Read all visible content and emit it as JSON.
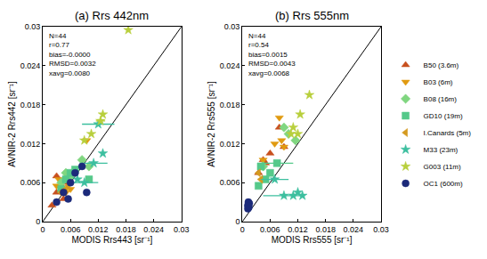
{
  "chart_data": [
    {
      "type": "scatter",
      "title": "(a) Rrs 442nm",
      "x_label": "MODIS Rrs443 [sr⁻¹]",
      "y_label": "AVNIR-2 Rrs442 [sr⁻¹]",
      "annotations": [
        "N=44",
        "r=0.77",
        "bias=-0.0000",
        "RMSD=0.0032",
        "xavg=0.0080"
      ],
      "xlim": [
        0,
        0.03
      ],
      "ylim": [
        0,
        0.03
      ],
      "xticks": [
        0,
        0.006,
        0.012,
        0.018,
        0.024,
        0.03
      ],
      "yticks": [
        0,
        0.006,
        0.012,
        0.018,
        0.024,
        0.03
      ],
      "grid": false,
      "legend": "right",
      "series": [
        {
          "name": "B50 (3.6m)",
          "color": "#c8501e",
          "marker": "triangle-up",
          "x": [
            0.003,
            0.004,
            0.005,
            0.003,
            0.002,
            0.0045
          ],
          "y": [
            0.0045,
            0.0055,
            0.006,
            0.007,
            0.0025,
            0.0035
          ]
        },
        {
          "name": "B03 (6m)",
          "color": "#e09a10",
          "marker": "triangle-down",
          "x": [
            0.003,
            0.004,
            0.005,
            0.0095,
            0.006,
            0.0035
          ],
          "y": [
            0.0055,
            0.0045,
            0.0045,
            0.0125,
            0.005,
            0.0065
          ]
        },
        {
          "name": "B08 (16m)",
          "color": "#80d680",
          "marker": "diamond",
          "x": [
            0.004,
            0.005,
            0.0085,
            0.01,
            0.006
          ],
          "y": [
            0.006,
            0.0075,
            0.0095,
            0.0085,
            0.007
          ]
        },
        {
          "name": "GD10 (19m)",
          "color": "#55c98a",
          "marker": "square",
          "x": [
            0.004,
            0.006,
            0.005,
            0.007,
            0.01
          ],
          "y": [
            0.005,
            0.0075,
            0.0065,
            0.008,
            0.0065
          ]
        },
        {
          "name": "I.Canards (5m)",
          "color": "#d49a20",
          "marker": "triangle-left",
          "x": [
            0.004,
            0.005,
            0.0055
          ],
          "y": [
            0.0045,
            0.005,
            0.0055
          ]
        },
        {
          "name": "M33 (23m)",
          "color": "#3cbf9f",
          "marker": "star",
          "x": [
            0.012,
            0.011,
            0.009,
            0.013,
            0.0075
          ],
          "y": [
            0.015,
            0.009,
            0.006,
            0.0105,
            0.0065
          ],
          "x_error": [
            0.0035,
            0.003,
            0.003,
            null,
            null
          ]
        },
        {
          "name": "G003 (11m)",
          "color": "#b8cf3c",
          "marker": "star",
          "x": [
            0.0185,
            0.0125,
            0.013,
            0.009,
            0.0105
          ],
          "y": [
            0.0295,
            0.0155,
            0.0165,
            0.0125,
            0.0135
          ],
          "x_error": [
            null,
            0.001,
            null,
            null,
            null
          ]
        },
        {
          "name": "OC1 (600m)",
          "color": "#1c2a7a",
          "marker": "circle",
          "x": [
            0.0085,
            0.0095,
            0.007,
            0.006,
            0.0045,
            0.0055,
            0.003
          ],
          "y": [
            0.0085,
            0.0045,
            0.0075,
            0.006,
            0.0045,
            0.0035,
            0.003
          ]
        }
      ]
    },
    {
      "type": "scatter",
      "title": "(b) Rrs 555nm",
      "x_label": "MODIS Rrs555 [sr⁻¹]",
      "y_label": "AVNIR-2 Rrs555 [sr⁻¹]",
      "annotations": [
        "N=44",
        "r=0.54",
        "bias=0.0015",
        "RMSD=0.0043",
        "xavg=0.0068"
      ],
      "xlim": [
        0,
        0.03
      ],
      "ylim": [
        0,
        0.03
      ],
      "xticks": [
        0,
        0.006,
        0.012,
        0.018,
        0.024,
        0.03
      ],
      "yticks": [
        0,
        0.006,
        0.012,
        0.018,
        0.024,
        0.03
      ],
      "grid": false,
      "legend": "right",
      "series": [
        {
          "name": "B50 (3.6m)",
          "color": "#c8501e",
          "marker": "triangle-up",
          "x": [
            0.008,
            0.009,
            0.006,
            0.005,
            0.0035,
            0.0045
          ],
          "y": [
            0.0145,
            0.0115,
            0.0105,
            0.009,
            0.0075,
            0.0095
          ]
        },
        {
          "name": "B03 (6m)",
          "color": "#e09a10",
          "marker": "triangle-down",
          "x": [
            0.008,
            0.0085,
            0.007,
            0.0045,
            0.009
          ],
          "y": [
            0.016,
            0.0125,
            0.012,
            0.0095,
            0.0115
          ]
        },
        {
          "name": "B08 (16m)",
          "color": "#80d680",
          "marker": "diamond",
          "x": [
            0.01,
            0.0115,
            0.0045,
            0.009
          ],
          "y": [
            0.0135,
            0.0125,
            0.0085,
            0.0145
          ]
        },
        {
          "name": "GD10 (19m)",
          "color": "#55c98a",
          "marker": "square",
          "x": [
            0.004,
            0.005,
            0.0075,
            0.0035,
            0.006
          ],
          "y": [
            0.0085,
            0.0065,
            0.009,
            0.0055,
            0.0075
          ],
          "x_error": [
            null,
            null,
            0.0035,
            null,
            null
          ]
        },
        {
          "name": "I.Canards (5m)",
          "color": "#d49a20",
          "marker": "triangle-left",
          "x": [
            0.0035,
            0.004
          ],
          "y": [
            0.0075,
            0.0065
          ]
        },
        {
          "name": "M33 (23m)",
          "color": "#3cbf9f",
          "marker": "star",
          "x": [
            0.007,
            0.009,
            0.011,
            0.012,
            0.013
          ],
          "y": [
            0.0065,
            0.004,
            0.004,
            0.0045,
            0.004
          ],
          "x_error": [
            0.003,
            0.0045,
            null,
            null,
            null
          ]
        },
        {
          "name": "G003 (11m)",
          "color": "#b8cf3c",
          "marker": "star",
          "x": [
            0.0145,
            0.011,
            0.0125,
            0.012,
            0.0105
          ],
          "y": [
            0.0195,
            0.0145,
            0.0165,
            0.0135,
            0.0135
          ]
        },
        {
          "name": "OC1 (600m)",
          "color": "#1c2a7a",
          "marker": "circle",
          "x": [
            0.0012,
            0.0013,
            0.0014,
            0.0012,
            0.0015,
            0.0013
          ],
          "y": [
            0.0025,
            0.003,
            0.0022,
            0.002,
            0.0028,
            0.0024
          ]
        }
      ]
    }
  ]
}
